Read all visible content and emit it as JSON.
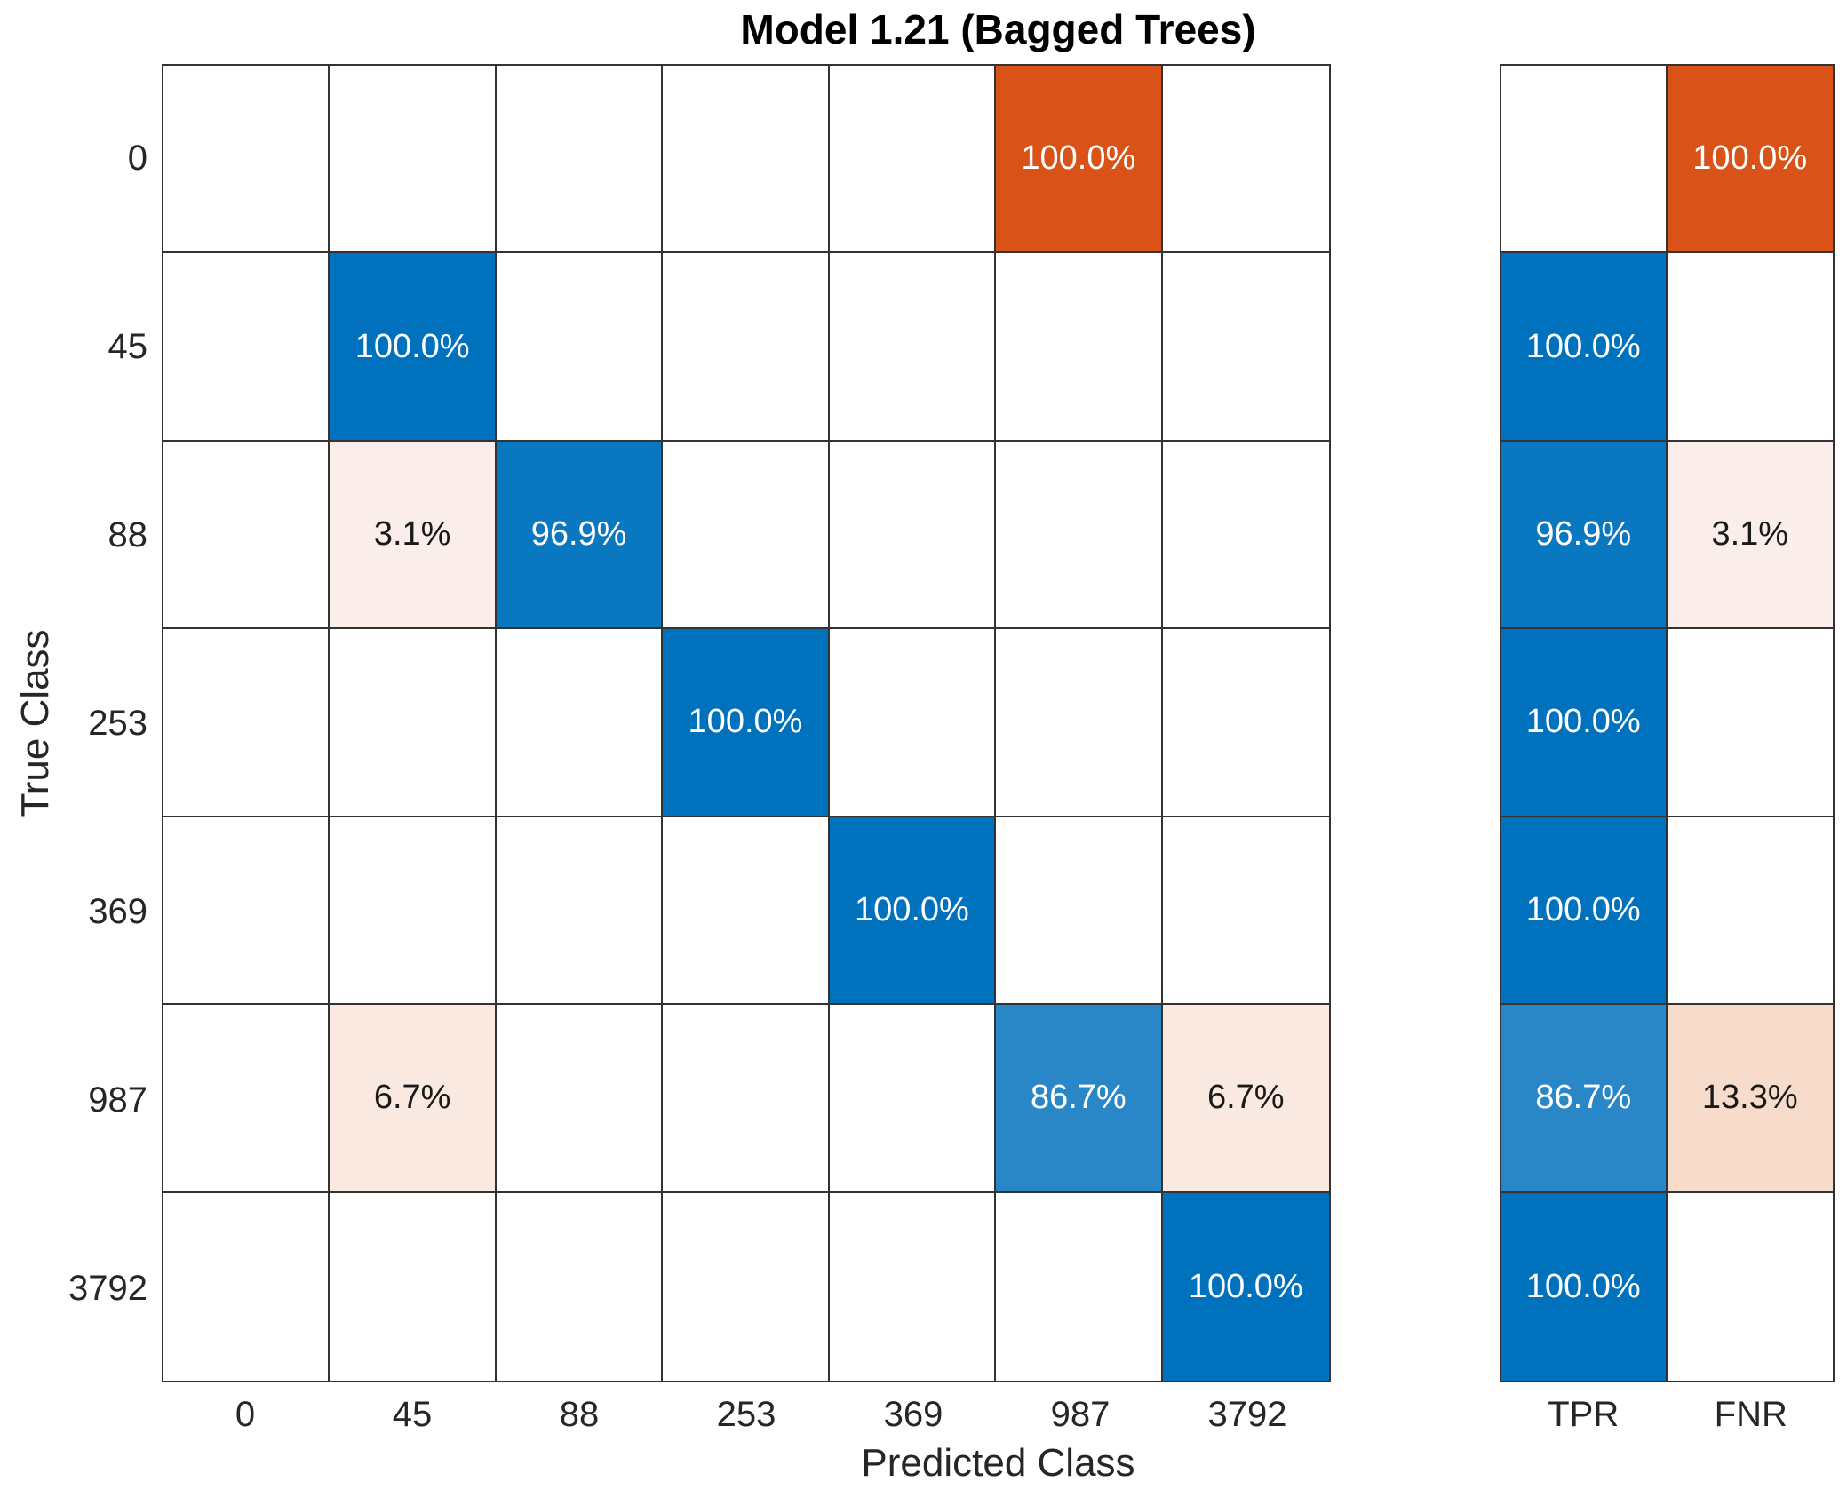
{
  "title": "Model 1.21 (Bagged Trees)",
  "x_axis": {
    "label": "Predicted Class",
    "ticks": [
      "0",
      "45",
      "88",
      "253",
      "369",
      "987",
      "3792"
    ]
  },
  "y_axis": {
    "label": "True Class",
    "ticks": [
      "0",
      "45",
      "88",
      "253",
      "369",
      "987",
      "3792"
    ]
  },
  "summary": {
    "columns": [
      "TPR",
      "FNR"
    ]
  },
  "colors": {
    "background": "#ffffff",
    "grid_line": "#333333",
    "text_dark": "#1a1a1a",
    "text_light": "#ffffff",
    "axis_text": "#262626",
    "cell_colors": {
      "blue_full": "#0072bd",
      "blue_high": "#0a77c1",
      "blue_mid": "#2987c8",
      "orange_full": "#d95319",
      "tint_31": "#fbeeea",
      "tint_67": "#fae9e0",
      "tint_133": "#f8dccb"
    }
  },
  "chart_data": {
    "type": "heatmap",
    "subtype": "confusion-matrix-row-normalized-percent",
    "title": "Model 1.21 (Bagged Trees)",
    "xlabel": "Predicted Class",
    "ylabel": "True Class",
    "legend_position": "none",
    "grid": true,
    "classes": [
      "0",
      "45",
      "88",
      "253",
      "369",
      "987",
      "3792"
    ],
    "matrix": [
      [
        null,
        null,
        null,
        null,
        null,
        {
          "value": 100.0,
          "label": "100.0%",
          "color": "orange_full",
          "text": "light"
        },
        null
      ],
      [
        null,
        {
          "value": 100.0,
          "label": "100.0%",
          "color": "blue_full",
          "text": "light"
        },
        null,
        null,
        null,
        null,
        null
      ],
      [
        null,
        {
          "value": 3.1,
          "label": "3.1%",
          "color": "tint_31",
          "text": "dark"
        },
        {
          "value": 96.9,
          "label": "96.9%",
          "color": "blue_high",
          "text": "light"
        },
        null,
        null,
        null,
        null
      ],
      [
        null,
        null,
        null,
        {
          "value": 100.0,
          "label": "100.0%",
          "color": "blue_full",
          "text": "light"
        },
        null,
        null,
        null
      ],
      [
        null,
        null,
        null,
        null,
        {
          "value": 100.0,
          "label": "100.0%",
          "color": "blue_full",
          "text": "light"
        },
        null,
        null
      ],
      [
        null,
        {
          "value": 6.7,
          "label": "6.7%",
          "color": "tint_67",
          "text": "dark"
        },
        null,
        null,
        null,
        {
          "value": 86.7,
          "label": "86.7%",
          "color": "blue_mid",
          "text": "light"
        },
        {
          "value": 6.7,
          "label": "6.7%",
          "color": "tint_67",
          "text": "dark"
        }
      ],
      [
        null,
        null,
        null,
        null,
        null,
        null,
        {
          "value": 100.0,
          "label": "100.0%",
          "color": "blue_full",
          "text": "light"
        }
      ]
    ],
    "row_summary_cells": [
      [
        null,
        {
          "value": 100.0,
          "label": "100.0%",
          "color": "orange_full",
          "text": "light"
        }
      ],
      [
        {
          "value": 100.0,
          "label": "100.0%",
          "color": "blue_full",
          "text": "light"
        },
        null
      ],
      [
        {
          "value": 96.9,
          "label": "96.9%",
          "color": "blue_high",
          "text": "light"
        },
        {
          "value": 3.1,
          "label": "3.1%",
          "color": "tint_31",
          "text": "dark"
        }
      ],
      [
        {
          "value": 100.0,
          "label": "100.0%",
          "color": "blue_full",
          "text": "light"
        },
        null
      ],
      [
        {
          "value": 100.0,
          "label": "100.0%",
          "color": "blue_full",
          "text": "light"
        },
        null
      ],
      [
        {
          "value": 86.7,
          "label": "86.7%",
          "color": "blue_mid",
          "text": "light"
        },
        {
          "value": 13.3,
          "label": "13.3%",
          "color": "tint_133",
          "text": "dark"
        }
      ],
      [
        {
          "value": 100.0,
          "label": "100.0%",
          "color": "blue_full",
          "text": "light"
        },
        null
      ]
    ]
  }
}
